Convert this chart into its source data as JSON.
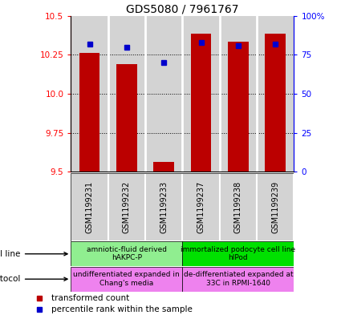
{
  "title": "GDS5080 / 7961767",
  "samples": [
    "GSM1199231",
    "GSM1199232",
    "GSM1199233",
    "GSM1199237",
    "GSM1199238",
    "GSM1199239"
  ],
  "red_values": [
    10.26,
    10.19,
    9.565,
    10.385,
    10.335,
    10.385
  ],
  "blue_values": [
    82,
    80,
    70,
    83,
    81,
    82
  ],
  "ylim_left": [
    9.5,
    10.5
  ],
  "ylim_right": [
    0,
    100
  ],
  "yticks_left": [
    9.5,
    9.75,
    10.0,
    10.25,
    10.5
  ],
  "yticks_right": [
    0,
    25,
    50,
    75,
    100
  ],
  "cell_line_label1": "amniotic-fluid derived\nhAKPC-P",
  "cell_line_label2": "immortalized podocyte cell line\nhIPod",
  "cell_line_color1": "#90ee90",
  "cell_line_color2": "#00e000",
  "growth_label1": "undifferentiated expanded in\nChang's media",
  "growth_label2": "de-differentiated expanded at\n33C in RPMI-1640",
  "growth_color": "#ee82ee",
  "legend_red": "transformed count",
  "legend_blue": "percentile rank within the sample",
  "bar_color": "#bb0000",
  "dot_color": "#0000cc",
  "bar_width": 0.55,
  "bg_color": "#d3d3d3",
  "grid_color": "#000000",
  "title_fontsize": 10,
  "tick_fontsize": 7.5,
  "label_fontsize": 7,
  "ann_fontsize": 6.5
}
